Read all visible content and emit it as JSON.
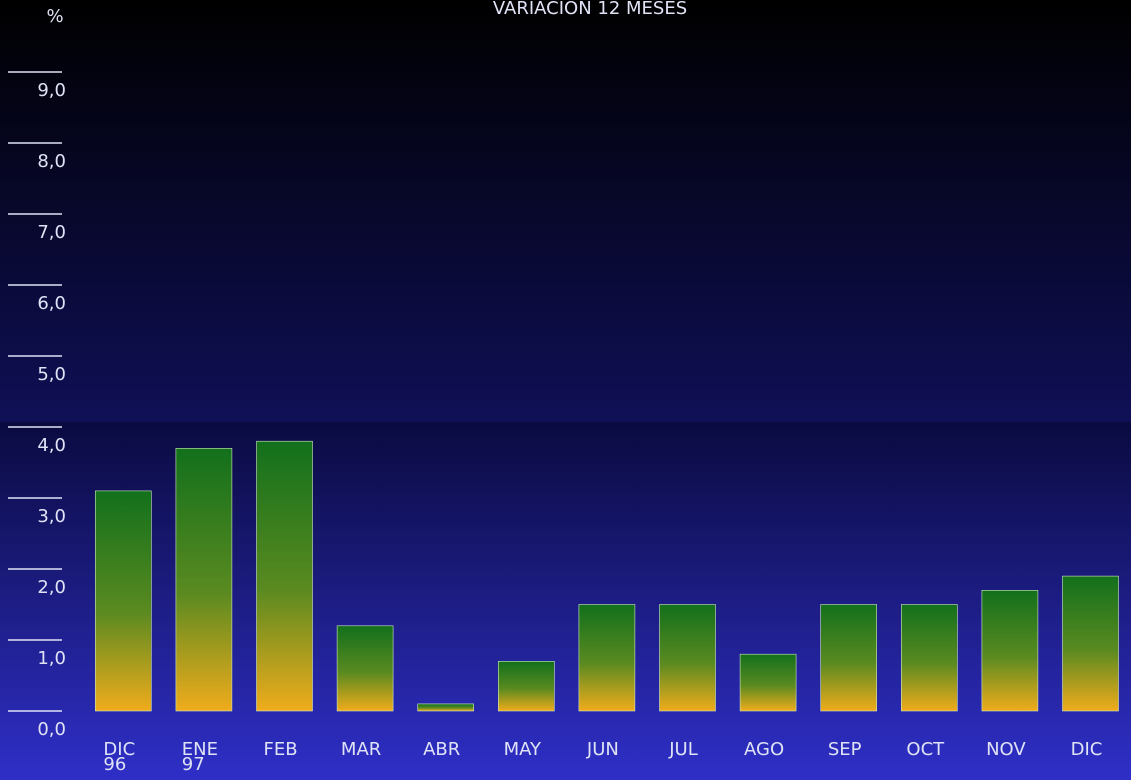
{
  "chart_data": {
    "type": "bar",
    "title": "VARIACION 12 MESES",
    "y_label": "%",
    "categories": [
      "DIC\n96",
      "ENE\n97",
      "FEB",
      "MAR",
      "ABR",
      "MAY",
      "JUN",
      "JUL",
      "AGO",
      "SEP",
      "OCT",
      "NOV",
      "DIC"
    ],
    "values": [
      3.1,
      3.7,
      3.8,
      1.2,
      0.1,
      0.7,
      1.5,
      1.5,
      0.8,
      1.5,
      1.5,
      1.7,
      1.9
    ],
    "color": [
      "#12701c",
      "#f0ac1c"
    ],
    "ylim": [
      0,
      10
    ],
    "yticks": [
      {
        "value": 0,
        "label": "0,0"
      },
      {
        "value": 1,
        "label": "1,0"
      },
      {
        "value": 2,
        "label": "2,0"
      },
      {
        "value": 3,
        "label": "3,0"
      },
      {
        "value": 4,
        "label": "4,0"
      },
      {
        "value": 5,
        "label": "5,0"
      },
      {
        "value": 6,
        "label": "6,0"
      },
      {
        "value": 7,
        "label": "7,0"
      },
      {
        "value": 8,
        "label": "8,0"
      },
      {
        "value": 9,
        "label": "9,0"
      }
    ]
  }
}
